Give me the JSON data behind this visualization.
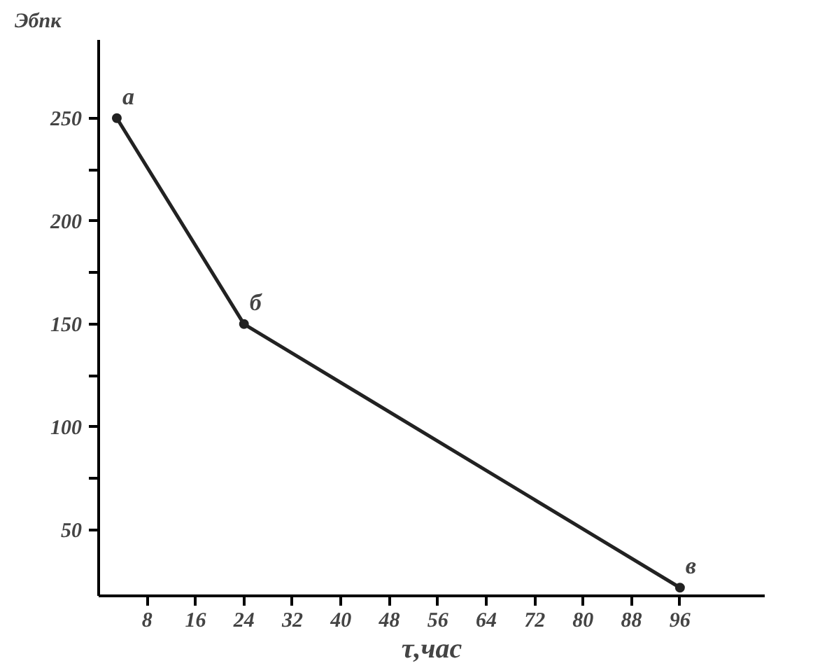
{
  "chart_data": {
    "type": "line",
    "xlabel": "τ,час",
    "ylabel": "Эбпк",
    "x": [
      3,
      24,
      96
    ],
    "series": [
      {
        "color": "#222222",
        "values": [
          250,
          150,
          22
        ]
      }
    ],
    "marker": "circle",
    "line_style": "solid",
    "grid": false,
    "xlim": [
      0,
      110
    ],
    "ylim": [
      18,
      288
    ],
    "xticks": [
      8,
      16,
      24,
      32,
      40,
      48,
      56,
      64,
      72,
      80,
      88,
      96
    ],
    "yticks": [
      50,
      {
        "value": 75,
        "label": null
      },
      100,
      {
        "value": 125,
        "label": null
      },
      150,
      {
        "value": 175,
        "label": null
      },
      200,
      {
        "value": 225,
        "label": null
      },
      250
    ],
    "annotations": [
      {
        "text": "а",
        "x": 3,
        "y": 250
      },
      {
        "text": "б",
        "x": 24,
        "y": 150
      },
      {
        "text": "в",
        "x": 96,
        "y": 22
      }
    ]
  }
}
